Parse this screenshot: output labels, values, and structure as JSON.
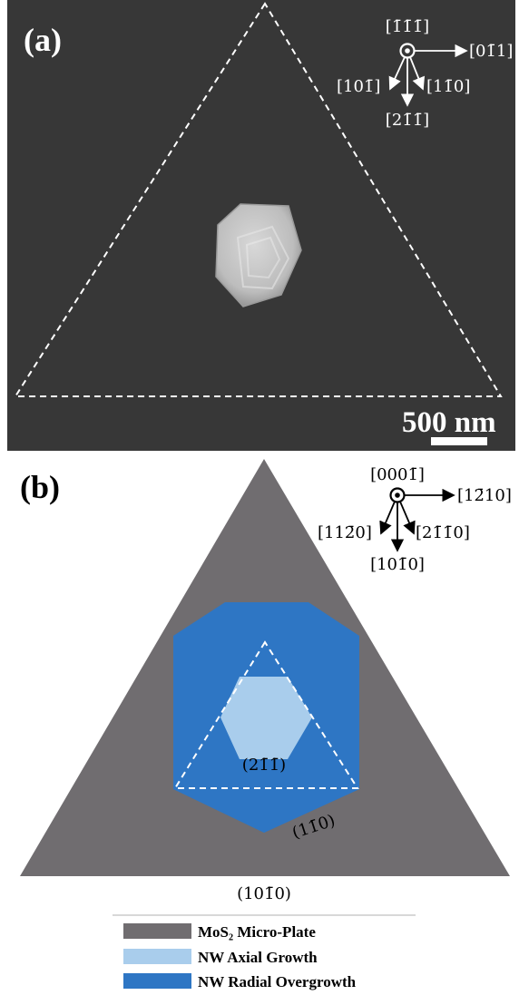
{
  "panel_a": {
    "label": "(a)",
    "scale_bar": "500 nm",
    "axes": {
      "out_of_plane": "[1̄1̄1̄]",
      "right": "[01̄1]",
      "left_down": "[101̄]",
      "right_down": "[11̄0]",
      "down": "[21̄1̄]"
    },
    "colors": {
      "background": "#3a3a3a",
      "crystal": "#cfcfcf",
      "outline": "#ffffff"
    }
  },
  "panel_b": {
    "label": "(b)",
    "axes": {
      "out_of_plane": "[0001̄]",
      "right": "[12̄10]",
      "left_down": "[112̄0]",
      "right_down": "[21̄1̄0]",
      "down": "[101̄0]"
    },
    "facet_labels": {
      "inner": "(21̄1̄)",
      "hex_edge": "(11̄0)",
      "base": "(101̄0)"
    },
    "colors": {
      "plate": "#706d70",
      "axial": "#a9cdec",
      "radial": "#2e76c4",
      "dashes": "#ffffff"
    }
  },
  "legend": {
    "items": [
      {
        "label": "MoS₂ Micro-Plate",
        "color": "#706d70"
      },
      {
        "label": "NW Axial Growth",
        "color": "#a9cdec"
      },
      {
        "label": "NW Radial Overgrowth",
        "color": "#2e76c4"
      }
    ]
  }
}
